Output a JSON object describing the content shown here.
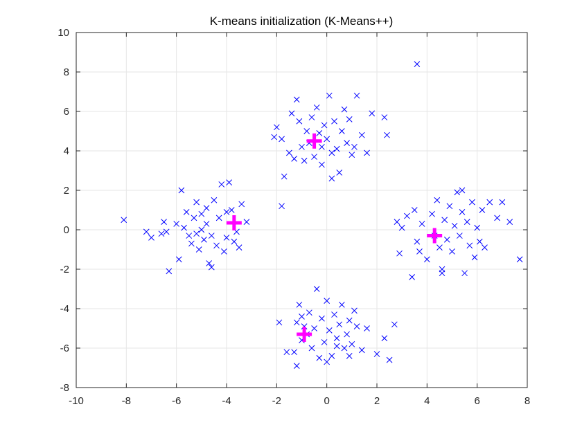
{
  "chart_data": {
    "type": "scatter",
    "title": "K-means initialization (K-Means++)",
    "xlabel": "",
    "ylabel": "",
    "xlim": [
      -10,
      8
    ],
    "ylim": [
      -8,
      10
    ],
    "xticks": [
      -10,
      -8,
      -6,
      -4,
      -2,
      0,
      2,
      4,
      6,
      8
    ],
    "yticks": [
      -8,
      -6,
      -4,
      -2,
      0,
      2,
      4,
      6,
      8,
      10
    ],
    "grid": true,
    "series": [
      {
        "marker": "x",
        "color": "#0000ff",
        "points": [
          [
            -8.1,
            0.5
          ],
          [
            -7.2,
            -0.1
          ],
          [
            -7.0,
            -0.4
          ],
          [
            -6.6,
            -0.2
          ],
          [
            -6.5,
            0.4
          ],
          [
            -6.4,
            -0.1
          ],
          [
            -6.0,
            0.3
          ],
          [
            -5.9,
            -1.5
          ],
          [
            -5.8,
            2.0
          ],
          [
            -5.6,
            0.9
          ],
          [
            -5.5,
            -0.3
          ],
          [
            -5.4,
            -0.7
          ],
          [
            -5.3,
            0.6
          ],
          [
            -5.2,
            -0.2
          ],
          [
            -5.2,
            1.4
          ],
          [
            -5.1,
            -1.0
          ],
          [
            -5.0,
            0.0
          ],
          [
            -5.0,
            0.8
          ],
          [
            -4.9,
            -0.5
          ],
          [
            -4.8,
            1.1
          ],
          [
            -4.8,
            0.3
          ],
          [
            -4.7,
            -1.7
          ],
          [
            -4.6,
            -0.3
          ],
          [
            -4.5,
            1.5
          ],
          [
            -4.4,
            -0.8
          ],
          [
            -4.3,
            0.6
          ],
          [
            -4.2,
            2.3
          ],
          [
            -4.1,
            -1.1
          ],
          [
            -4.0,
            -0.4
          ],
          [
            -4.0,
            0.9
          ],
          [
            -3.9,
            2.4
          ],
          [
            -3.8,
            1.0
          ],
          [
            -3.6,
            -0.1
          ],
          [
            -3.5,
            -0.9
          ],
          [
            -3.4,
            1.3
          ],
          [
            -3.2,
            0.4
          ],
          [
            -6.3,
            -2.1
          ],
          [
            -4.6,
            -1.9
          ],
          [
            -5.7,
            0.1
          ],
          [
            -3.7,
            -0.6
          ],
          [
            -2.0,
            5.2
          ],
          [
            -1.8,
            4.6
          ],
          [
            -1.7,
            2.7
          ],
          [
            -1.8,
            1.2
          ],
          [
            -1.5,
            3.9
          ],
          [
            -1.4,
            5.9
          ],
          [
            -1.2,
            6.6
          ],
          [
            -1.1,
            5.5
          ],
          [
            -1.0,
            4.2
          ],
          [
            -0.9,
            3.5
          ],
          [
            -0.8,
            5.0
          ],
          [
            -0.7,
            4.4
          ],
          [
            -0.6,
            5.7
          ],
          [
            -0.5,
            3.7
          ],
          [
            -0.4,
            6.2
          ],
          [
            -0.3,
            4.9
          ],
          [
            -0.2,
            3.3
          ],
          [
            -0.1,
            5.3
          ],
          [
            0.0,
            4.6
          ],
          [
            0.1,
            6.8
          ],
          [
            0.2,
            3.9
          ],
          [
            0.3,
            5.5
          ],
          [
            0.4,
            4.1
          ],
          [
            0.5,
            2.9
          ],
          [
            0.6,
            5.0
          ],
          [
            0.7,
            6.1
          ],
          [
            0.8,
            4.4
          ],
          [
            1.0,
            3.8
          ],
          [
            1.2,
            6.8
          ],
          [
            1.4,
            4.8
          ],
          [
            1.6,
            3.9
          ],
          [
            1.8,
            5.9
          ],
          [
            2.3,
            5.7
          ],
          [
            2.4,
            4.8
          ],
          [
            0.9,
            5.6
          ],
          [
            -0.2,
            4.2
          ],
          [
            -2.1,
            4.7
          ],
          [
            -1.3,
            3.6
          ],
          [
            0.2,
            2.6
          ],
          [
            1.1,
            4.2
          ],
          [
            -1.9,
            -4.7
          ],
          [
            -1.6,
            -6.2
          ],
          [
            -1.3,
            -6.2
          ],
          [
            -1.2,
            -4.7
          ],
          [
            -1.1,
            -3.8
          ],
          [
            -1.0,
            -5.6
          ],
          [
            -0.9,
            -4.9
          ],
          [
            -0.8,
            -5.3
          ],
          [
            -0.7,
            -4.2
          ],
          [
            -0.6,
            -6.0
          ],
          [
            -0.5,
            -5.0
          ],
          [
            -0.4,
            -3.0
          ],
          [
            -0.3,
            -6.5
          ],
          [
            -0.2,
            -4.5
          ],
          [
            -0.1,
            -5.7
          ],
          [
            0.0,
            -3.6
          ],
          [
            0.1,
            -5.1
          ],
          [
            0.2,
            -6.4
          ],
          [
            0.3,
            -4.3
          ],
          [
            0.4,
            -5.5
          ],
          [
            0.5,
            -4.8
          ],
          [
            0.6,
            -3.8
          ],
          [
            0.7,
            -6.0
          ],
          [
            0.8,
            -5.3
          ],
          [
            0.9,
            -4.6
          ],
          [
            1.0,
            -5.8
          ],
          [
            1.2,
            -4.9
          ],
          [
            1.4,
            -6.1
          ],
          [
            1.6,
            -5.0
          ],
          [
            2.0,
            -6.3
          ],
          [
            2.3,
            -5.5
          ],
          [
            2.5,
            -6.6
          ],
          [
            2.7,
            -4.8
          ],
          [
            -1.2,
            -6.9
          ],
          [
            0.0,
            -6.7
          ],
          [
            1.1,
            -4.1
          ],
          [
            -1.0,
            -4.4
          ],
          [
            0.4,
            -5.9
          ],
          [
            0.9,
            -6.4
          ],
          [
            2.8,
            0.4
          ],
          [
            2.9,
            -1.2
          ],
          [
            3.0,
            0.1
          ],
          [
            3.2,
            0.7
          ],
          [
            3.4,
            -2.4
          ],
          [
            3.5,
            1.0
          ],
          [
            3.6,
            -0.6
          ],
          [
            3.7,
            -1.1
          ],
          [
            3.8,
            0.3
          ],
          [
            4.0,
            -1.5
          ],
          [
            4.2,
            0.8
          ],
          [
            4.3,
            -0.3
          ],
          [
            4.4,
            1.5
          ],
          [
            4.5,
            -0.9
          ],
          [
            4.6,
            -2.0
          ],
          [
            4.7,
            0.5
          ],
          [
            4.8,
            -0.5
          ],
          [
            4.9,
            1.2
          ],
          [
            5.0,
            -1.1
          ],
          [
            5.1,
            0.2
          ],
          [
            5.2,
            1.9
          ],
          [
            5.3,
            -0.3
          ],
          [
            5.4,
            0.9
          ],
          [
            5.5,
            -2.2
          ],
          [
            5.6,
            0.4
          ],
          [
            5.7,
            -0.8
          ],
          [
            5.8,
            1.4
          ],
          [
            5.9,
            -1.4
          ],
          [
            6.0,
            0.1
          ],
          [
            6.1,
            -0.6
          ],
          [
            6.3,
            -0.9
          ],
          [
            6.5,
            1.4
          ],
          [
            6.8,
            0.6
          ],
          [
            7.0,
            1.4
          ],
          [
            7.3,
            0.4
          ],
          [
            7.7,
            -1.5
          ],
          [
            3.6,
            8.4
          ],
          [
            4.6,
            -2.2
          ],
          [
            5.4,
            2.0
          ],
          [
            6.2,
            1.0
          ]
        ]
      },
      {
        "marker": "+",
        "color": "#ff00ff",
        "points": [
          [
            -3.7,
            0.35
          ],
          [
            -0.5,
            4.5
          ],
          [
            -0.9,
            -5.3
          ],
          [
            4.3,
            -0.3
          ]
        ]
      }
    ]
  }
}
